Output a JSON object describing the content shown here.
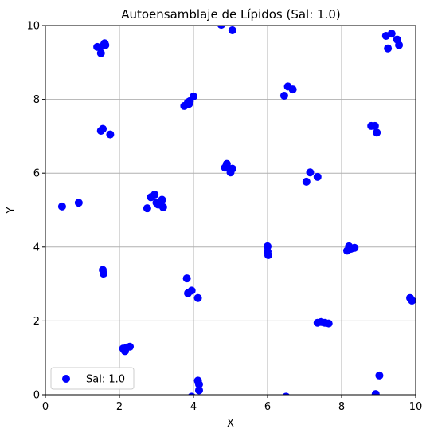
{
  "chart_data": {
    "type": "scatter",
    "title": "Autoensamblaje de Lípidos (Sal: 1.0)",
    "xlabel": "X",
    "ylabel": "Y",
    "xlim": [
      0,
      10
    ],
    "ylim": [
      0,
      10
    ],
    "xticks": [
      "0",
      "2",
      "4",
      "6",
      "8",
      "10"
    ],
    "yticks": [
      "0",
      "2",
      "4",
      "6",
      "8",
      "10"
    ],
    "grid": true,
    "legend_position": "lower-left",
    "series": [
      {
        "name": "Sal: 1.0",
        "color": "#0000ff",
        "points": [
          [
            1.4,
            9.42
          ],
          [
            1.5,
            9.25
          ],
          [
            1.55,
            9.45
          ],
          [
            1.6,
            9.52
          ],
          [
            1.62,
            9.47
          ],
          [
            4.75,
            10.02
          ],
          [
            5.05,
            9.87
          ],
          [
            9.2,
            9.72
          ],
          [
            9.35,
            9.78
          ],
          [
            9.5,
            9.62
          ],
          [
            9.55,
            9.47
          ],
          [
            9.25,
            9.38
          ],
          [
            3.75,
            7.82
          ],
          [
            3.85,
            7.92
          ],
          [
            3.9,
            7.95
          ],
          [
            4.0,
            8.08
          ],
          [
            3.88,
            7.88
          ],
          [
            6.55,
            8.35
          ],
          [
            6.68,
            8.27
          ],
          [
            6.45,
            8.1
          ],
          [
            1.5,
            7.15
          ],
          [
            1.55,
            7.2
          ],
          [
            1.75,
            7.05
          ],
          [
            8.8,
            7.28
          ],
          [
            8.9,
            7.28
          ],
          [
            8.95,
            7.1
          ],
          [
            4.85,
            6.15
          ],
          [
            4.9,
            6.25
          ],
          [
            5.05,
            6.12
          ],
          [
            5.0,
            6.02
          ],
          [
            7.15,
            6.02
          ],
          [
            7.35,
            5.9
          ],
          [
            7.05,
            5.77
          ],
          [
            0.45,
            5.1
          ],
          [
            0.9,
            5.2
          ],
          [
            2.85,
            5.35
          ],
          [
            2.95,
            5.42
          ],
          [
            3.05,
            5.15
          ],
          [
            3.15,
            5.28
          ],
          [
            3.18,
            5.08
          ],
          [
            2.75,
            5.05
          ],
          [
            3.0,
            5.2
          ],
          [
            6.0,
            4.02
          ],
          [
            6.0,
            3.88
          ],
          [
            6.02,
            3.78
          ],
          [
            8.15,
            3.9
          ],
          [
            8.2,
            4.02
          ],
          [
            8.35,
            3.98
          ],
          [
            8.25,
            3.95
          ],
          [
            1.55,
            3.38
          ],
          [
            1.57,
            3.28
          ],
          [
            3.82,
            3.15
          ],
          [
            3.85,
            2.75
          ],
          [
            3.95,
            2.82
          ],
          [
            4.12,
            2.62
          ],
          [
            9.85,
            2.62
          ],
          [
            9.9,
            2.55
          ],
          [
            7.35,
            1.95
          ],
          [
            7.45,
            1.97
          ],
          [
            7.55,
            1.95
          ],
          [
            7.65,
            1.93
          ],
          [
            2.1,
            1.25
          ],
          [
            2.2,
            1.28
          ],
          [
            2.28,
            1.3
          ],
          [
            2.15,
            1.18
          ],
          [
            4.12,
            0.38
          ],
          [
            4.15,
            0.28
          ],
          [
            4.15,
            0.12
          ],
          [
            9.02,
            0.52
          ],
          [
            8.92,
            0.02
          ],
          [
            3.95,
            -0.05
          ],
          [
            6.5,
            -0.05
          ]
        ]
      }
    ]
  }
}
